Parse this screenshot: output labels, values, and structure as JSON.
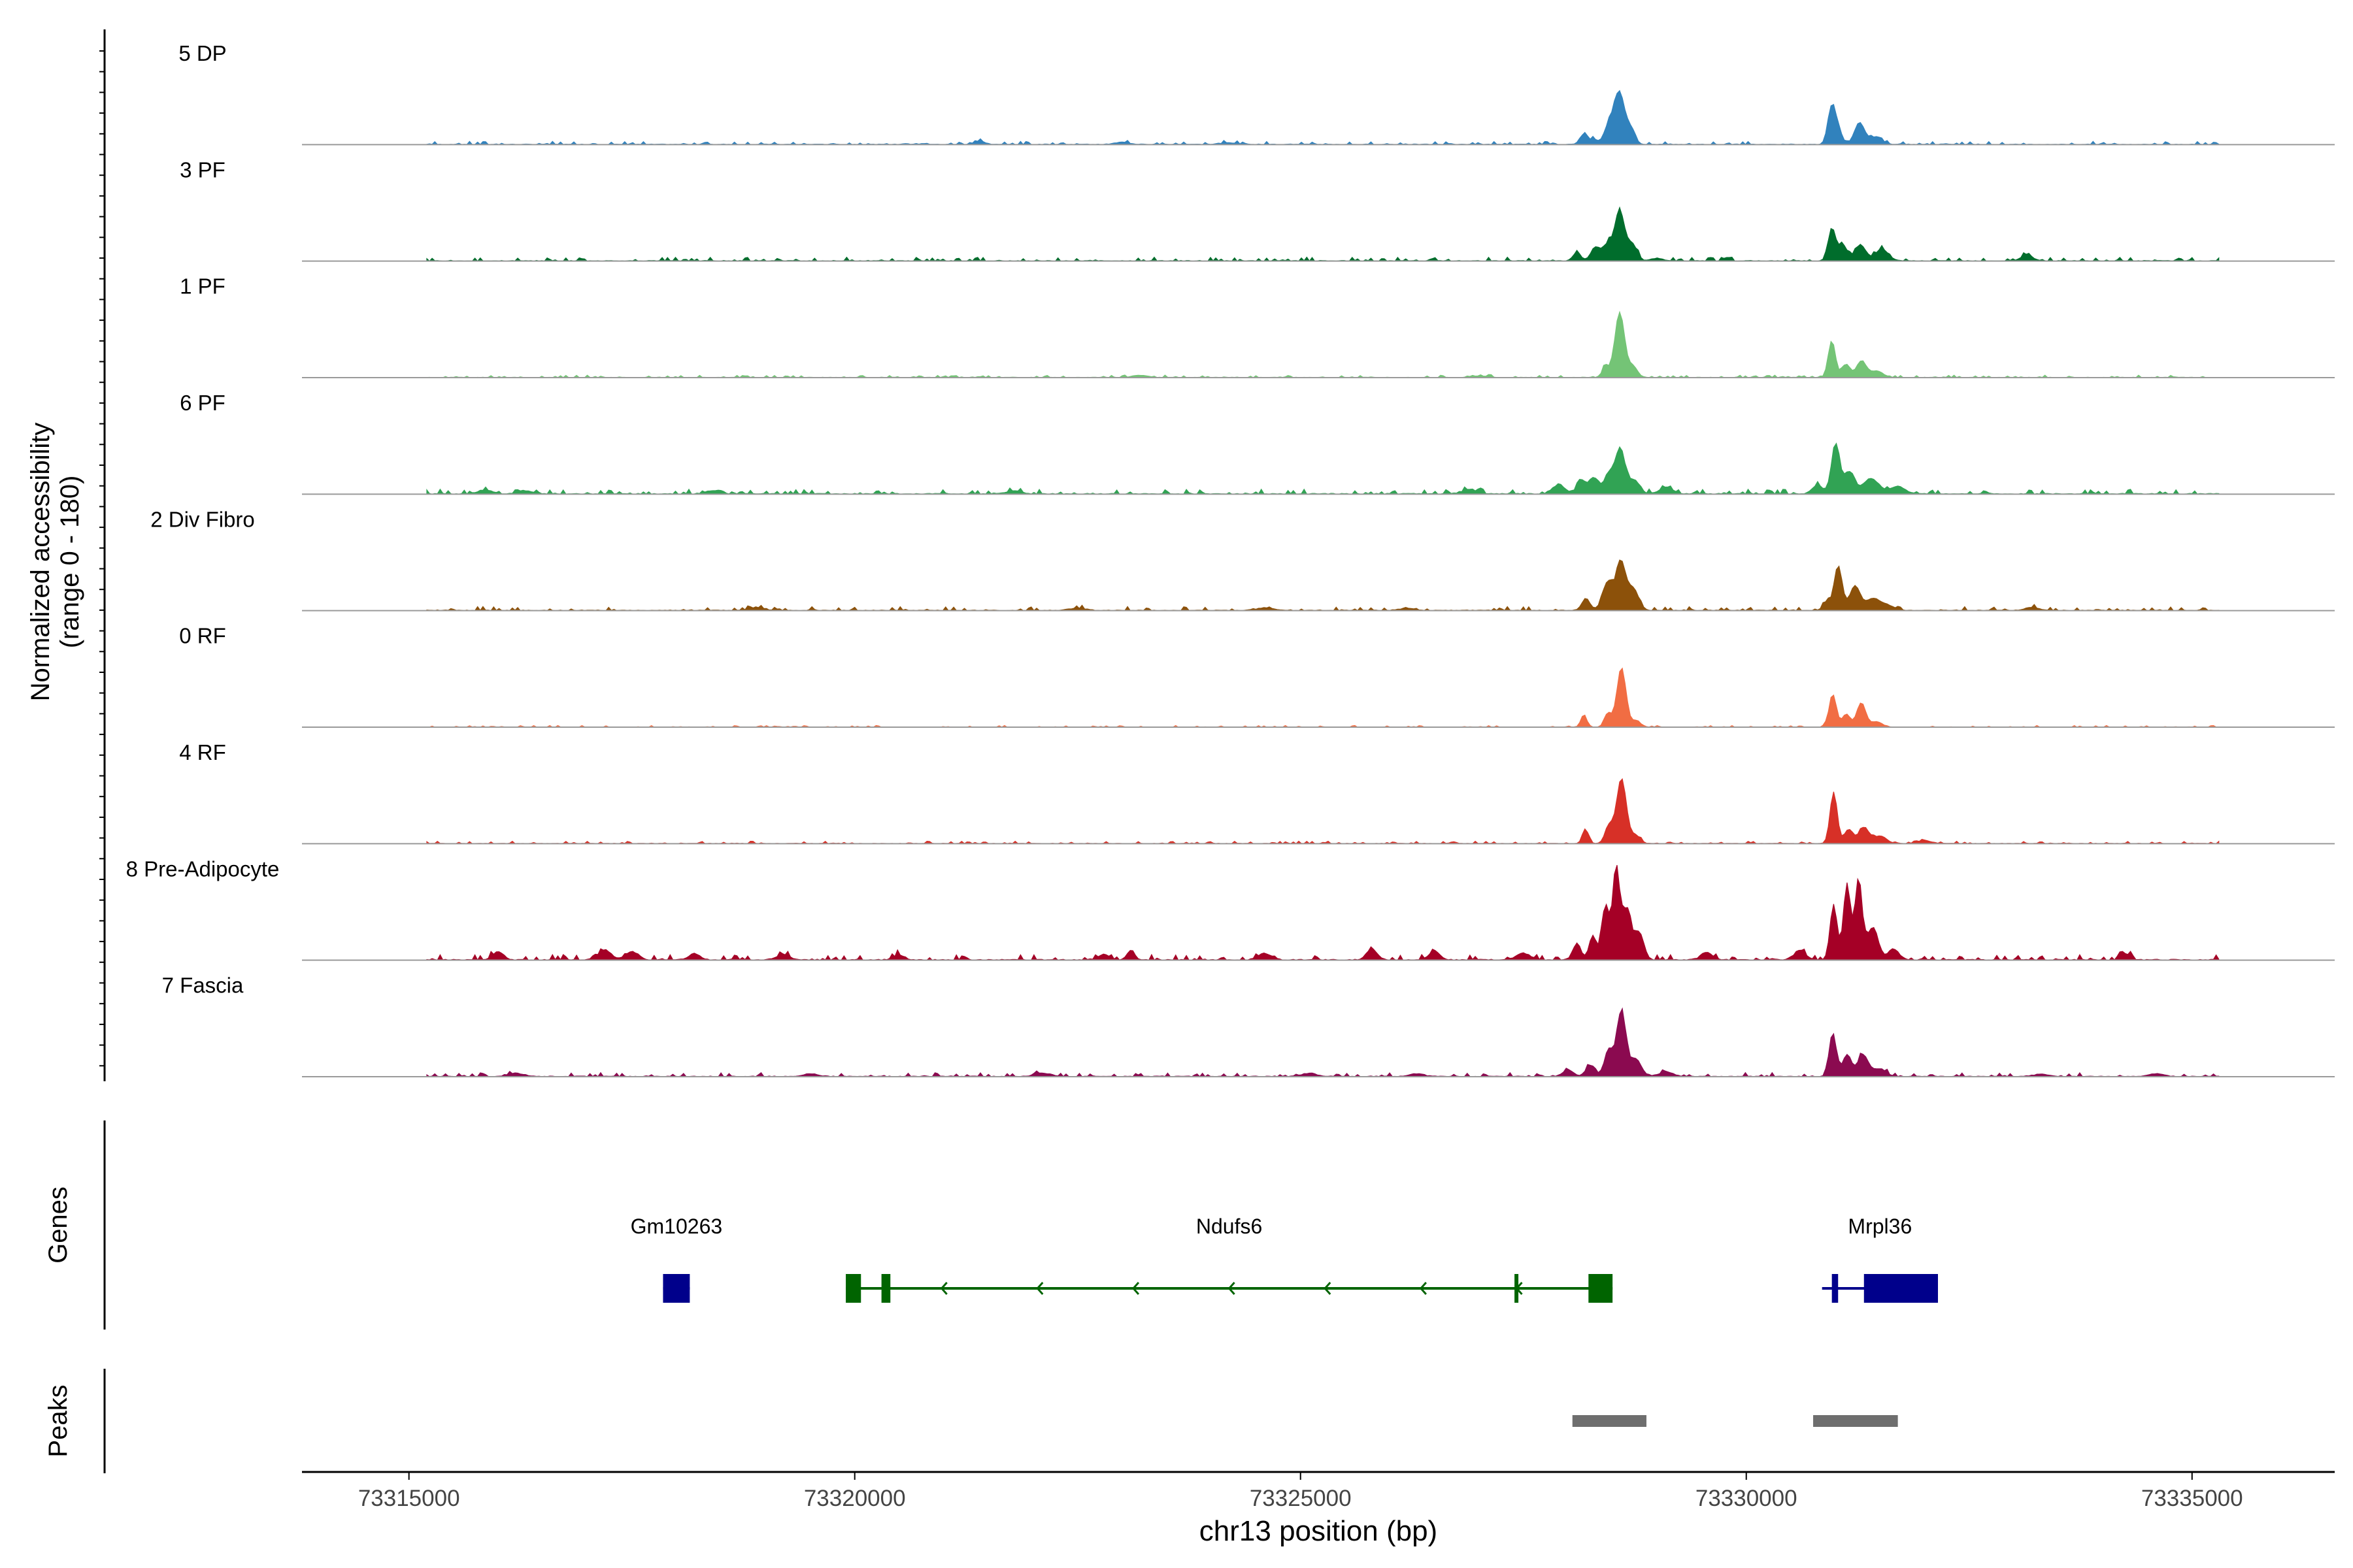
{
  "chart_data": {
    "type": "area",
    "title": "",
    "ylabel_line1": "Normalized accessibility",
    "ylabel_line2": "(range 0 - 180)",
    "xlabel": "chr13 position (bp)",
    "xlim": [
      73313800,
      73336600
    ],
    "x_ticks": [
      73315000,
      73320000,
      73325000,
      73330000,
      73335000
    ],
    "x_tick_labels": [
      "73315000",
      "73320000",
      "73325000",
      "73330000",
      "73335000"
    ],
    "ylim": [
      0,
      180
    ],
    "tracks": [
      {
        "name": "5 DP",
        "color": "#3182bd",
        "peaks": [
          [
            73328170,
            18,
            40
          ],
          [
            73328280,
            10,
            40
          ],
          [
            73328470,
            38,
            60
          ],
          [
            73328580,
            90,
            55
          ],
          [
            73328700,
            28,
            50
          ],
          [
            73330950,
            60,
            40
          ],
          [
            73331020,
            35,
            45
          ],
          [
            73331270,
            40,
            55
          ],
          [
            73331450,
            14,
            70
          ],
          [
            73321400,
            6,
            60
          ],
          [
            73323000,
            4,
            80
          ],
          [
            73324200,
            3,
            100
          ]
        ],
        "noise": 2.0
      },
      {
        "name": "3 PF",
        "color": "#006d2c",
        "peaks": [
          [
            73328100,
            14,
            45
          ],
          [
            73328300,
            24,
            45
          ],
          [
            73328440,
            30,
            60
          ],
          [
            73328580,
            90,
            55
          ],
          [
            73328720,
            30,
            55
          ],
          [
            73330960,
            60,
            40
          ],
          [
            73331080,
            30,
            50
          ],
          [
            73331280,
            30,
            60
          ],
          [
            73331520,
            22,
            70
          ],
          [
            73333150,
            12,
            60
          ],
          [
            73329000,
            5,
            60
          ]
        ],
        "noise": 2.5
      },
      {
        "name": "1 PF",
        "color": "#74c476",
        "peaks": [
          [
            73328420,
            22,
            35
          ],
          [
            73328580,
            120,
            55
          ],
          [
            73328730,
            20,
            50
          ],
          [
            73330960,
            68,
            40
          ],
          [
            73331120,
            24,
            45
          ],
          [
            73331290,
            30,
            55
          ],
          [
            73331460,
            12,
            70
          ],
          [
            73323200,
            4,
            80
          ],
          [
            73327000,
            3,
            90
          ]
        ],
        "noise": 1.5
      },
      {
        "name": "6 PF",
        "color": "#31a354",
        "peaks": [
          [
            73327900,
            18,
            60
          ],
          [
            73328150,
            25,
            50
          ],
          [
            73328290,
            30,
            50
          ],
          [
            73328470,
            40,
            60
          ],
          [
            73328590,
            80,
            50
          ],
          [
            73328740,
            26,
            60
          ],
          [
            73329100,
            10,
            80
          ],
          [
            73330800,
            16,
            60
          ],
          [
            73331000,
            92,
            45
          ],
          [
            73331150,
            40,
            60
          ],
          [
            73331400,
            28,
            90
          ],
          [
            73331700,
            14,
            80
          ],
          [
            73315850,
            7,
            80
          ],
          [
            73316300,
            6,
            80
          ],
          [
            73318400,
            6,
            80
          ],
          [
            73321800,
            5,
            80
          ],
          [
            73326900,
            8,
            80
          ]
        ],
        "noise": 3.0
      },
      {
        "name": "2 Div Fibro",
        "color": "#8c510a",
        "peaks": [
          [
            73328200,
            22,
            45
          ],
          [
            73328440,
            50,
            55
          ],
          [
            73328590,
            90,
            55
          ],
          [
            73328730,
            40,
            60
          ],
          [
            73330900,
            16,
            40
          ],
          [
            73331030,
            82,
            45
          ],
          [
            73331220,
            45,
            60
          ],
          [
            73331420,
            22,
            70
          ],
          [
            73331580,
            10,
            70
          ],
          [
            73318900,
            5,
            80
          ],
          [
            73322500,
            4,
            90
          ],
          [
            73324600,
            5,
            90
          ],
          [
            73326200,
            4,
            90
          ],
          [
            73333200,
            5,
            80
          ]
        ],
        "noise": 2.5
      },
      {
        "name": "0 RF",
        "color": "#f16d43",
        "peaks": [
          [
            73328180,
            20,
            35
          ],
          [
            73328450,
            26,
            40
          ],
          [
            73328600,
            110,
            50
          ],
          [
            73328760,
            12,
            50
          ],
          [
            73330970,
            60,
            40
          ],
          [
            73331120,
            24,
            45
          ],
          [
            73331290,
            45,
            50
          ],
          [
            73331460,
            10,
            60
          ]
        ],
        "noise": 1.0
      },
      {
        "name": "4 RF",
        "color": "#d73027",
        "peaks": [
          [
            73328200,
            24,
            35
          ],
          [
            73328460,
            32,
            45
          ],
          [
            73328600,
            120,
            55
          ],
          [
            73328760,
            15,
            50
          ],
          [
            73330980,
            95,
            40
          ],
          [
            73331150,
            26,
            50
          ],
          [
            73331320,
            30,
            55
          ],
          [
            73331500,
            14,
            70
          ],
          [
            73332000,
            5,
            80
          ]
        ],
        "noise": 1.5
      },
      {
        "name": "8 Pre-Adipocyte",
        "color": "#a50026",
        "peaks": [
          [
            73316000,
            15,
            60
          ],
          [
            73317200,
            18,
            70
          ],
          [
            73317500,
            15,
            70
          ],
          [
            73318200,
            12,
            60
          ],
          [
            73319200,
            10,
            70
          ],
          [
            73320500,
            9,
            60
          ],
          [
            73322800,
            10,
            60
          ],
          [
            73323100,
            18,
            40
          ],
          [
            73324600,
            12,
            70
          ],
          [
            73325800,
            20,
            60
          ],
          [
            73326500,
            16,
            60
          ],
          [
            73327500,
            12,
            80
          ],
          [
            73328100,
            30,
            45
          ],
          [
            73328280,
            45,
            40
          ],
          [
            73328420,
            100,
            40
          ],
          [
            73328540,
            170,
            40
          ],
          [
            73328660,
            95,
            50
          ],
          [
            73328800,
            50,
            50
          ],
          [
            73329550,
            14,
            60
          ],
          [
            73330600,
            18,
            60
          ],
          [
            73330980,
            100,
            40
          ],
          [
            73331130,
            140,
            40
          ],
          [
            73331260,
            150,
            40
          ],
          [
            73331420,
            60,
            60
          ],
          [
            73331650,
            20,
            60
          ],
          [
            73334250,
            12,
            50
          ]
        ],
        "noise": 3.5
      },
      {
        "name": "7 Fascia",
        "color": "#8b0a50",
        "peaks": [
          [
            73328000,
            12,
            60
          ],
          [
            73328250,
            20,
            50
          ],
          [
            73328460,
            50,
            50
          ],
          [
            73328600,
            120,
            50
          ],
          [
            73328760,
            32,
            60
          ],
          [
            73329100,
            8,
            80
          ],
          [
            73330970,
            80,
            40
          ],
          [
            73331130,
            40,
            50
          ],
          [
            73331310,
            40,
            60
          ],
          [
            73331500,
            14,
            70
          ],
          [
            73315000,
            4,
            60
          ],
          [
            73316200,
            6,
            80
          ],
          [
            73319500,
            5,
            80
          ],
          [
            73322100,
            6,
            80
          ],
          [
            73325100,
            6,
            80
          ],
          [
            73326300,
            5,
            80
          ],
          [
            73333300,
            4,
            80
          ],
          [
            73334600,
            5,
            80
          ]
        ],
        "noise": 2.5
      }
    ],
    "genes_panel_label": "Genes",
    "genes": [
      {
        "name": "Gm10263",
        "start": 73317850,
        "end": 73318150,
        "strand": "+",
        "color": "#00008b",
        "exons": [
          [
            73317850,
            73318150
          ]
        ]
      },
      {
        "name": "Ndufs6",
        "start": 73319900,
        "end": 73328500,
        "strand": "-",
        "color": "#006400",
        "exons": [
          [
            73319900,
            73320070
          ],
          [
            73320300,
            73320400
          ],
          [
            73327400,
            73327440
          ],
          [
            73328230,
            73328500
          ]
        ]
      },
      {
        "name": "Mrpl36",
        "start": 73330850,
        "end": 73332150,
        "strand": "-",
        "color": "#00008b",
        "exons": [
          [
            73330960,
            73331030
          ],
          [
            73331320,
            73332150
          ]
        ]
      }
    ],
    "peaks_panel_label": "Peaks",
    "peak_regions": [
      [
        73328050,
        73328880
      ],
      [
        73330750,
        73331700
      ]
    ]
  }
}
